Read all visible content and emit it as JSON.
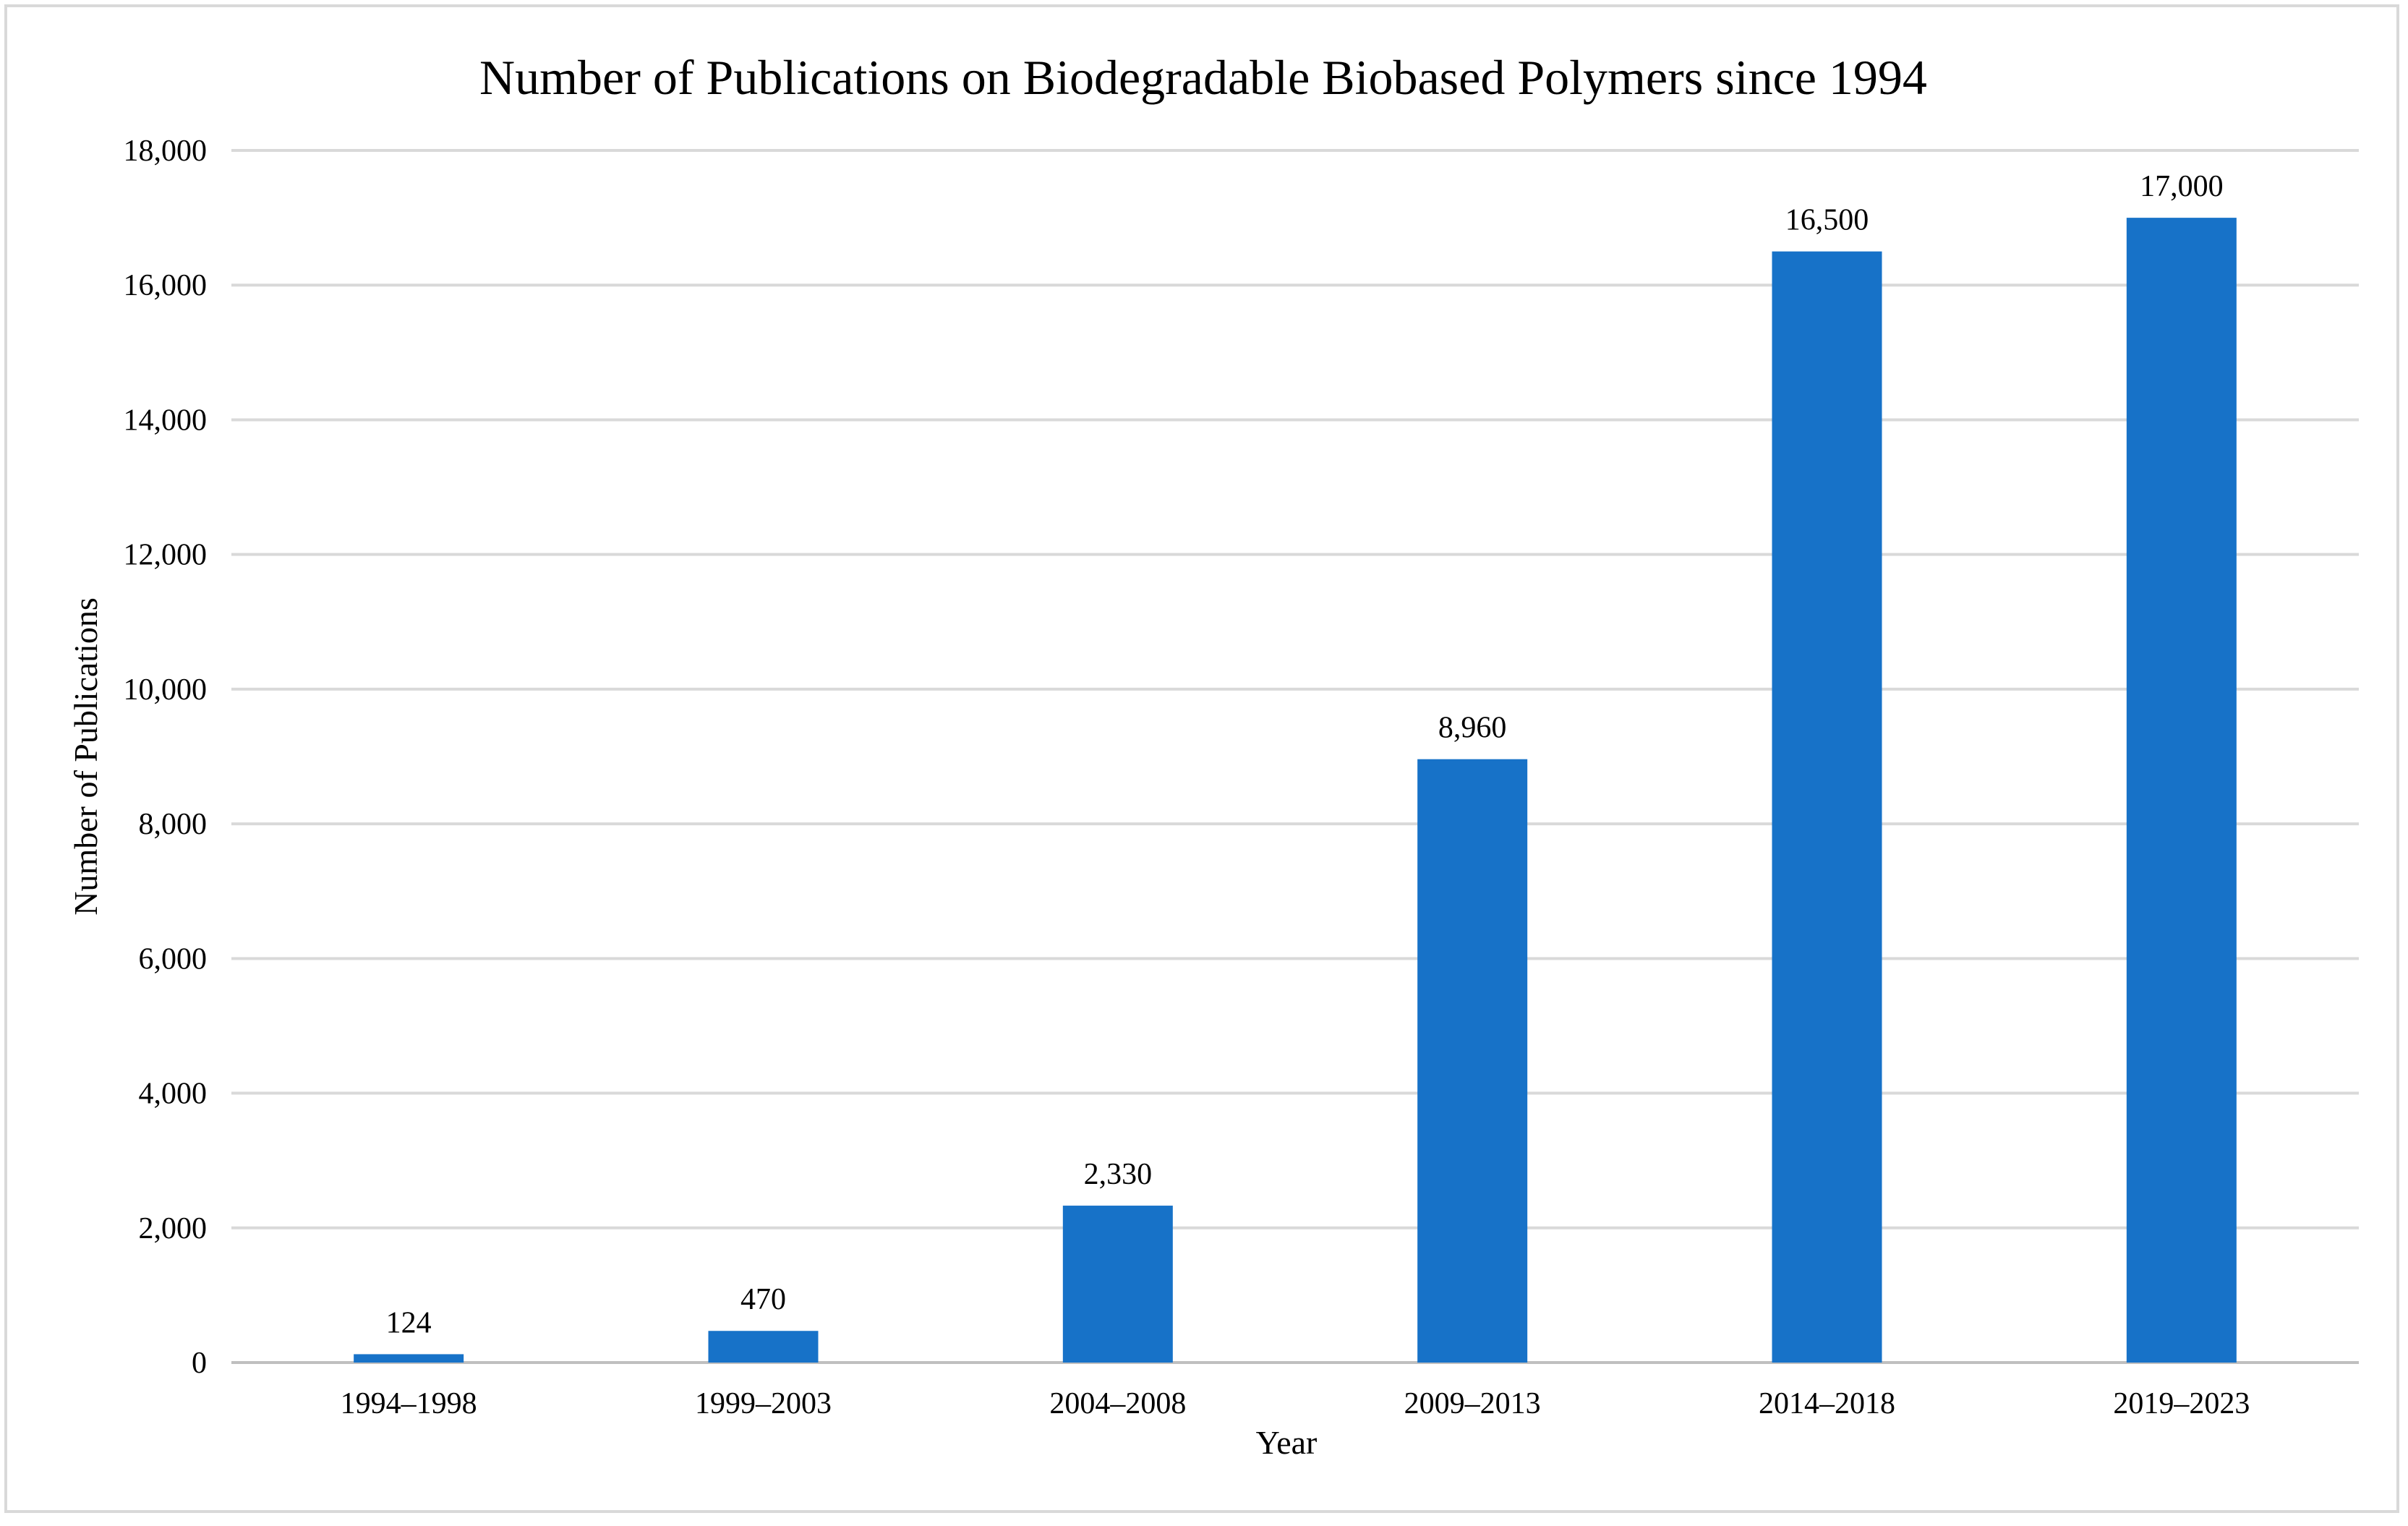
{
  "chart_data": {
    "type": "bar",
    "title": "Number of Publications on Biodegradable Biobased Polymers since 1994",
    "xlabel": "Year",
    "ylabel": "Number of Publications",
    "categories": [
      "1994–1998",
      "1999–2003",
      "2004–2008",
      "2009–2013",
      "2014–2018",
      "2019–2023"
    ],
    "values": [
      124,
      470,
      2330,
      8960,
      16500,
      17000
    ],
    "data_labels": [
      "124",
      "470",
      "2,330",
      "8,960",
      "16,500",
      "17,000"
    ],
    "ylim": [
      0,
      18000
    ],
    "yticks": [
      0,
      2000,
      4000,
      6000,
      8000,
      10000,
      12000,
      14000,
      16000,
      18000
    ],
    "ytick_labels": [
      "0",
      "2,000",
      "4,000",
      "6,000",
      "8,000",
      "10,000",
      "12,000",
      "14,000",
      "16,000",
      "18,000"
    ],
    "grid": true,
    "legend": "none",
    "bar_color": "#1772C8",
    "grid_color": "#D9D9D9"
  }
}
